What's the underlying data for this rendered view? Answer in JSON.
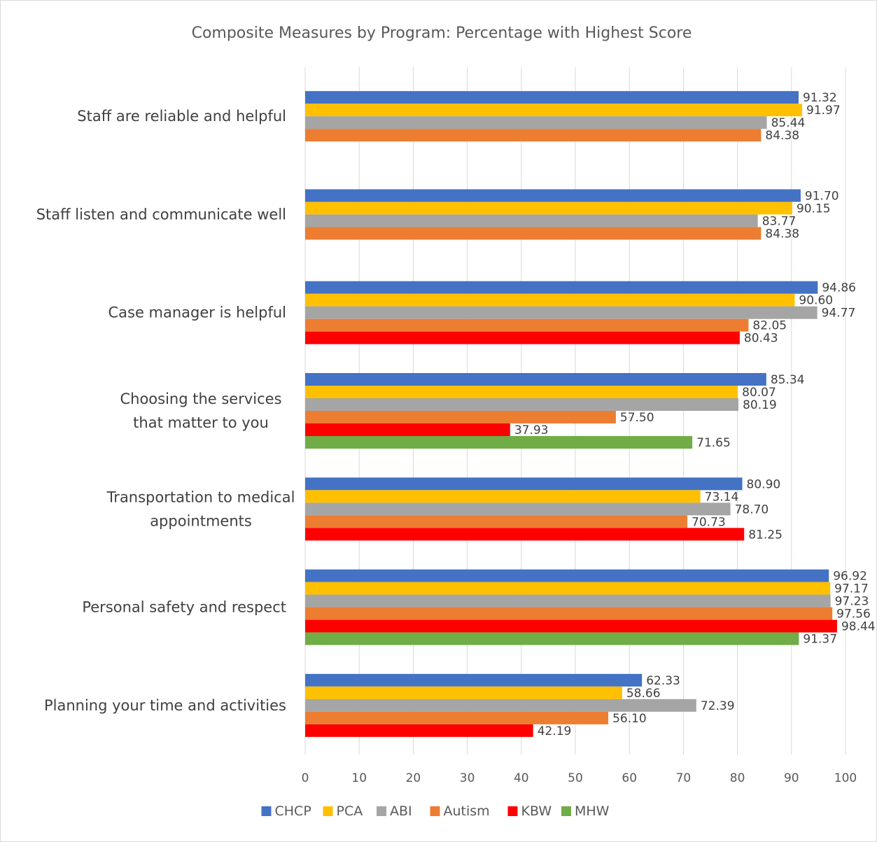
{
  "chart_data": {
    "type": "bar",
    "orientation": "horizontal",
    "title": "Composite Measures by Program: Percentage with Highest Score",
    "xlabel": "",
    "ylabel": "",
    "xlim": [
      0,
      100
    ],
    "x_ticks": [
      "0",
      "10",
      "20",
      "30",
      "40",
      "50",
      "60",
      "70",
      "80",
      "90",
      "100"
    ],
    "grid": true,
    "legend_position": "bottom",
    "categories": [
      [
        "Staff are reliable and helpful"
      ],
      [
        "Staff listen and communicate well"
      ],
      [
        "Case manager is helpful"
      ],
      [
        "Choosing the services",
        "that matter to you"
      ],
      [
        "Transportation to medical",
        "appointments"
      ],
      [
        "Personal safety and respect"
      ],
      [
        "Planning your time and activities"
      ]
    ],
    "series": [
      {
        "name": "CHCP",
        "color": "#4472C4",
        "values": [
          91.32,
          91.7,
          94.86,
          85.34,
          80.9,
          96.92,
          62.33
        ],
        "labels": [
          "91.32",
          "91.70",
          "94.86",
          "85.34",
          "80.90",
          "96.92",
          "62.33"
        ]
      },
      {
        "name": "PCA",
        "color": "#FFC000",
        "values": [
          91.97,
          90.15,
          90.6,
          80.07,
          73.14,
          97.17,
          58.66
        ],
        "labels": [
          "91.97",
          "90.15",
          "90.60",
          "80.07",
          "73.14",
          "97.17",
          "58.66"
        ]
      },
      {
        "name": "ABI",
        "color": "#A5A5A5",
        "values": [
          85.44,
          83.77,
          94.77,
          80.19,
          78.7,
          97.23,
          72.39
        ],
        "labels": [
          "85.44",
          "83.77",
          "94.77",
          "80.19",
          "78.70",
          "97.23",
          "72.39"
        ]
      },
      {
        "name": "Autism",
        "color": "#ED7D31",
        "values": [
          84.38,
          84.38,
          82.05,
          57.5,
          70.73,
          97.56,
          56.1
        ],
        "labels": [
          "84.38",
          "84.38",
          "82.05",
          "57.50",
          "70.73",
          "97.56",
          "56.10"
        ]
      },
      {
        "name": "KBW",
        "color": "#FF0000",
        "values": [
          null,
          null,
          80.43,
          37.93,
          81.25,
          98.44,
          42.19
        ],
        "labels": [
          null,
          null,
          "80.43",
          "37.93",
          "81.25",
          "98.44",
          "42.19"
        ]
      },
      {
        "name": "MHW",
        "color": "#70AD47",
        "values": [
          null,
          null,
          null,
          71.65,
          null,
          91.37,
          null
        ],
        "labels": [
          null,
          null,
          null,
          "71.65",
          null,
          "91.37",
          null
        ]
      }
    ]
  }
}
